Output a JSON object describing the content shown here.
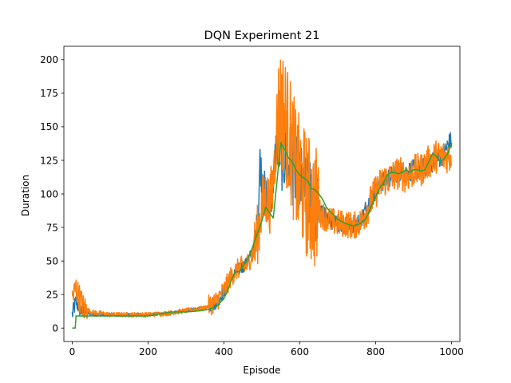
{
  "chart_data": {
    "type": "line",
    "title": "DQN Experiment 21",
    "xlabel": "Episode",
    "ylabel": "Duration",
    "xlim": [
      -22,
      1022
    ],
    "ylim": [
      -10,
      210
    ],
    "x_ticks": [
      0,
      200,
      400,
      600,
      800,
      1000
    ],
    "y_ticks": [
      0,
      25,
      50,
      75,
      100,
      125,
      150,
      175,
      200
    ],
    "grid": false,
    "legend": "none",
    "series": [
      {
        "color": "#1f77b4",
        "style": "noisy",
        "points": [
          [
            0,
            10
          ],
          [
            10,
            20
          ],
          [
            20,
            14
          ],
          [
            40,
            11
          ],
          [
            60,
            10
          ],
          [
            100,
            10
          ],
          [
            150,
            10
          ],
          [
            200,
            10
          ],
          [
            250,
            11
          ],
          [
            300,
            13
          ],
          [
            350,
            15
          ],
          [
            380,
            19
          ],
          [
            400,
            27
          ],
          [
            420,
            38
          ],
          [
            440,
            44
          ],
          [
            460,
            48
          ],
          [
            480,
            60
          ],
          [
            490,
            80
          ],
          [
            495,
            125
          ],
          [
            500,
            112
          ],
          [
            510,
            100
          ],
          [
            520,
            90
          ],
          [
            530,
            110
          ],
          [
            540,
            145
          ],
          [
            550,
            132
          ],
          [
            560,
            128
          ],
          [
            580,
            122
          ],
          [
            600,
            108
          ],
          [
            620,
            102
          ],
          [
            650,
            88
          ],
          [
            680,
            80
          ],
          [
            700,
            78
          ],
          [
            720,
            76
          ],
          [
            740,
            77
          ],
          [
            760,
            80
          ],
          [
            780,
            92
          ],
          [
            800,
            102
          ],
          [
            820,
            110
          ],
          [
            840,
            113
          ],
          [
            860,
            117
          ],
          [
            880,
            116
          ],
          [
            900,
            118
          ],
          [
            920,
            118
          ],
          [
            940,
            122
          ],
          [
            960,
            125
          ],
          [
            980,
            130
          ],
          [
            990,
            136
          ],
          [
            1000,
            140
          ]
        ]
      },
      {
        "color": "#ff7f0e",
        "style": "noisy",
        "points": [
          [
            0,
            22
          ],
          [
            10,
            30
          ],
          [
            20,
            22
          ],
          [
            30,
            15
          ],
          [
            50,
            12
          ],
          [
            100,
            10
          ],
          [
            150,
            10
          ],
          [
            200,
            10
          ],
          [
            250,
            11
          ],
          [
            300,
            13
          ],
          [
            350,
            15
          ],
          [
            380,
            20
          ],
          [
            400,
            28
          ],
          [
            420,
            39
          ],
          [
            440,
            45
          ],
          [
            460,
            47
          ],
          [
            480,
            58
          ],
          [
            490,
            72
          ],
          [
            500,
            90
          ],
          [
            510,
            98
          ],
          [
            520,
            92
          ],
          [
            530,
            108
          ],
          [
            540,
            150
          ],
          [
            550,
            165
          ],
          [
            560,
            158
          ],
          [
            570,
            145
          ],
          [
            580,
            132
          ],
          [
            590,
            118
          ],
          [
            600,
            110
          ],
          [
            620,
            98
          ],
          [
            640,
            90
          ],
          [
            660,
            84
          ],
          [
            680,
            80
          ],
          [
            700,
            78
          ],
          [
            720,
            78
          ],
          [
            740,
            76
          ],
          [
            760,
            79
          ],
          [
            780,
            90
          ],
          [
            800,
            102
          ],
          [
            820,
            110
          ],
          [
            840,
            112
          ],
          [
            860,
            116
          ],
          [
            880,
            113
          ],
          [
            900,
            117
          ],
          [
            920,
            118
          ],
          [
            940,
            124
          ],
          [
            960,
            128
          ],
          [
            980,
            128
          ],
          [
            1000,
            128
          ]
        ]
      },
      {
        "color": "#2ca02c",
        "style": "smooth",
        "points": [
          [
            0,
            0
          ],
          [
            8,
            0
          ],
          [
            10,
            9
          ],
          [
            100,
            9
          ],
          [
            200,
            9
          ],
          [
            220,
            10
          ],
          [
            260,
            12
          ],
          [
            300,
            12
          ],
          [
            340,
            13
          ],
          [
            360,
            14
          ],
          [
            380,
            16
          ],
          [
            400,
            22
          ],
          [
            410,
            28
          ],
          [
            420,
            36
          ],
          [
            430,
            42
          ],
          [
            440,
            42
          ],
          [
            450,
            46
          ],
          [
            460,
            50
          ],
          [
            470,
            56
          ],
          [
            480,
            64
          ],
          [
            490,
            72
          ],
          [
            500,
            80
          ],
          [
            510,
            90
          ],
          [
            520,
            86
          ],
          [
            530,
            82
          ],
          [
            540,
            110
          ],
          [
            550,
            138
          ],
          [
            560,
            133
          ],
          [
            570,
            127
          ],
          [
            580,
            124
          ],
          [
            590,
            118
          ],
          [
            600,
            114
          ],
          [
            610,
            112
          ],
          [
            620,
            110
          ],
          [
            630,
            104
          ],
          [
            640,
            103
          ],
          [
            650,
            100
          ],
          [
            660,
            96
          ],
          [
            670,
            90
          ],
          [
            680,
            87
          ],
          [
            690,
            84
          ],
          [
            700,
            81
          ],
          [
            720,
            78
          ],
          [
            740,
            76
          ],
          [
            760,
            78
          ],
          [
            770,
            80
          ],
          [
            780,
            85
          ],
          [
            790,
            92
          ],
          [
            800,
            98
          ],
          [
            810,
            104
          ],
          [
            820,
            108
          ],
          [
            830,
            114
          ],
          [
            840,
            116
          ],
          [
            850,
            116
          ],
          [
            860,
            115
          ],
          [
            870,
            116
          ],
          [
            880,
            118
          ],
          [
            890,
            116
          ],
          [
            900,
            118
          ],
          [
            910,
            118
          ],
          [
            920,
            117
          ],
          [
            930,
            118
          ],
          [
            940,
            124
          ],
          [
            950,
            130
          ],
          [
            960,
            128
          ],
          [
            970,
            124
          ],
          [
            980,
            126
          ],
          [
            990,
            130
          ],
          [
            1000,
            138
          ]
        ]
      }
    ]
  }
}
